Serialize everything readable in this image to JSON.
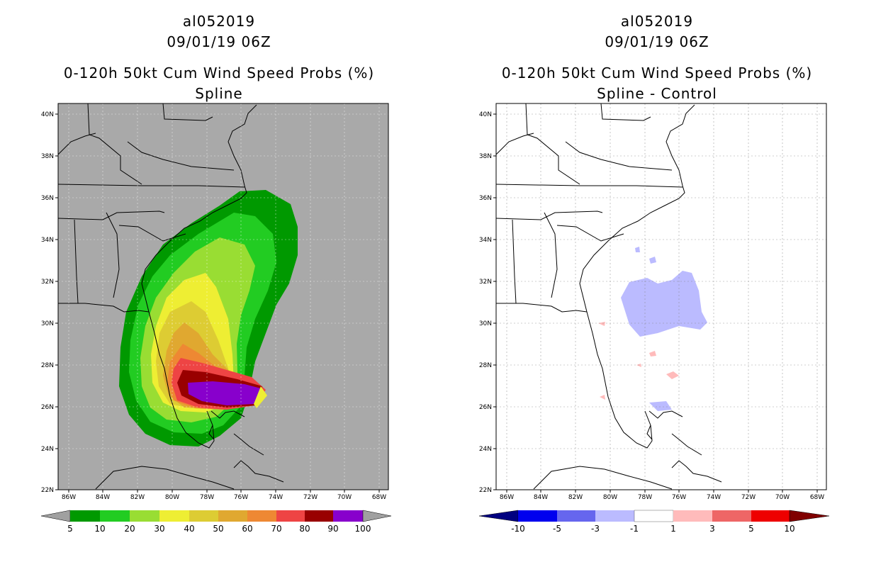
{
  "left": {
    "titles": [
      "al052019",
      "09/01/19 06Z",
      "0-120h 50kt Cum Wind Speed Probs (%)",
      "Spline"
    ],
    "colorbar": {
      "labels": [
        "5",
        "10",
        "20",
        "30",
        "40",
        "50",
        "60",
        "70",
        "80",
        "90",
        "100"
      ],
      "colors": [
        "#A0A0A0",
        "#009900",
        "#22CC22",
        "#99DD33",
        "#EEEE33",
        "#DDCC33",
        "#E0A830",
        "#EE8833",
        "#EE4444",
        "#990000",
        "#8800CC",
        "#A0A0A0"
      ]
    }
  },
  "right": {
    "titles": [
      "al052019",
      "09/01/19 06Z",
      "0-120h 50kt Cum Wind Speed Probs (%)",
      "Spline - Control"
    ],
    "colorbar": {
      "labels": [
        "-10",
        "-5",
        "-3",
        "-1",
        "1",
        "3",
        "5",
        "10"
      ],
      "colors": [
        "#000080",
        "#0000EE",
        "#6666EE",
        "#BBBBFF",
        "#FFFFFF",
        "#FFBBBB",
        "#EE6666",
        "#EE0000",
        "#800000"
      ]
    }
  },
  "axes": {
    "lat_labels": [
      "40N",
      "38N",
      "36N",
      "34N",
      "32N",
      "30N",
      "28N",
      "26N",
      "24N",
      "22N"
    ],
    "lon_labels": [
      "86W",
      "84W",
      "82W",
      "80W",
      "78W",
      "76W",
      "74W",
      "72W",
      "70W",
      "68W"
    ]
  },
  "colors": {
    "ocean_left": "#A9A9A9",
    "ocean_right": "#FFFFFF"
  }
}
